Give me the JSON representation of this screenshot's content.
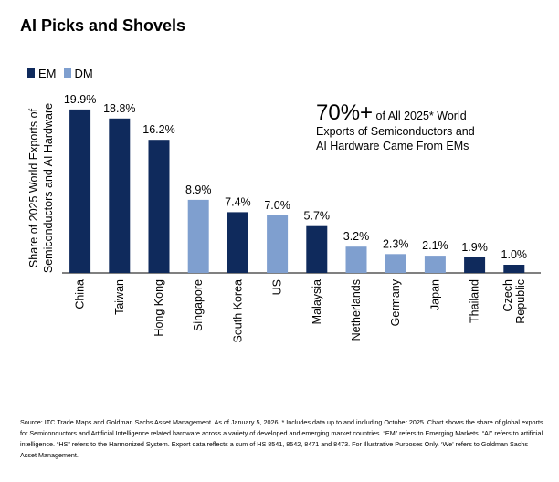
{
  "title": "AI Picks and Shovels",
  "legend": [
    {
      "label": "EM",
      "color": "#0f2a5c"
    },
    {
      "label": "DM",
      "color": "#7f9fcf"
    }
  ],
  "ylabel_line1": "Share of 2025 World Exports of",
  "ylabel_line2": "Semiconductors and AI Hardware",
  "annotation": {
    "big": "70%+",
    "line1_rest": " of All 2025* World",
    "line2": "Exports of Semiconductors and",
    "line3": "AI Hardware Came From EMs"
  },
  "source": "Source: ITC Trade Maps and Goldman Sachs Asset Management. As of January 5, 2026. * Includes data up to and including October 2025. Chart shows the share of global exports for Semiconductors and Artificial Intelligence related hardware across a variety of developed and emerging market countries. “EM” refers to Emerging Markets. “AI” refers to artificial intelligence. “HS” refers to the Harmonized System. Export data reflects a sum of HS 8541, 8542, 8471 and 8473. For Illustrative Purposes Only. ‘We’ refers to Goldman Sachs Asset Management.",
  "chart_data": {
    "type": "bar",
    "title": "AI Picks and Shovels",
    "ylabel": "Share of 2025 World Exports of Semiconductors and AI Hardware",
    "xlabel": "",
    "ylim": [
      0,
      20
    ],
    "categories": [
      "China",
      "Taiwan",
      "Hong Kong",
      "Singapore",
      "South Korea",
      "US",
      "Malaysia",
      "Netherlands",
      "Germany",
      "Japan",
      "Thailand",
      "Czech Republic"
    ],
    "values": [
      19.9,
      18.8,
      16.2,
      8.9,
      7.4,
      7.0,
      5.7,
      3.2,
      2.3,
      2.1,
      1.9,
      1.0
    ],
    "value_labels": [
      "19.9%",
      "18.8%",
      "16.2%",
      "8.9%",
      "7.4%",
      "7.0%",
      "5.7%",
      "3.2%",
      "2.3%",
      "2.1%",
      "1.9%",
      "1.0%"
    ],
    "groups": [
      "EM",
      "EM",
      "EM",
      "DM",
      "EM",
      "DM",
      "EM",
      "DM",
      "DM",
      "DM",
      "EM",
      "EM"
    ],
    "colors": {
      "EM": "#0f2a5c",
      "DM": "#7f9fcf"
    }
  }
}
